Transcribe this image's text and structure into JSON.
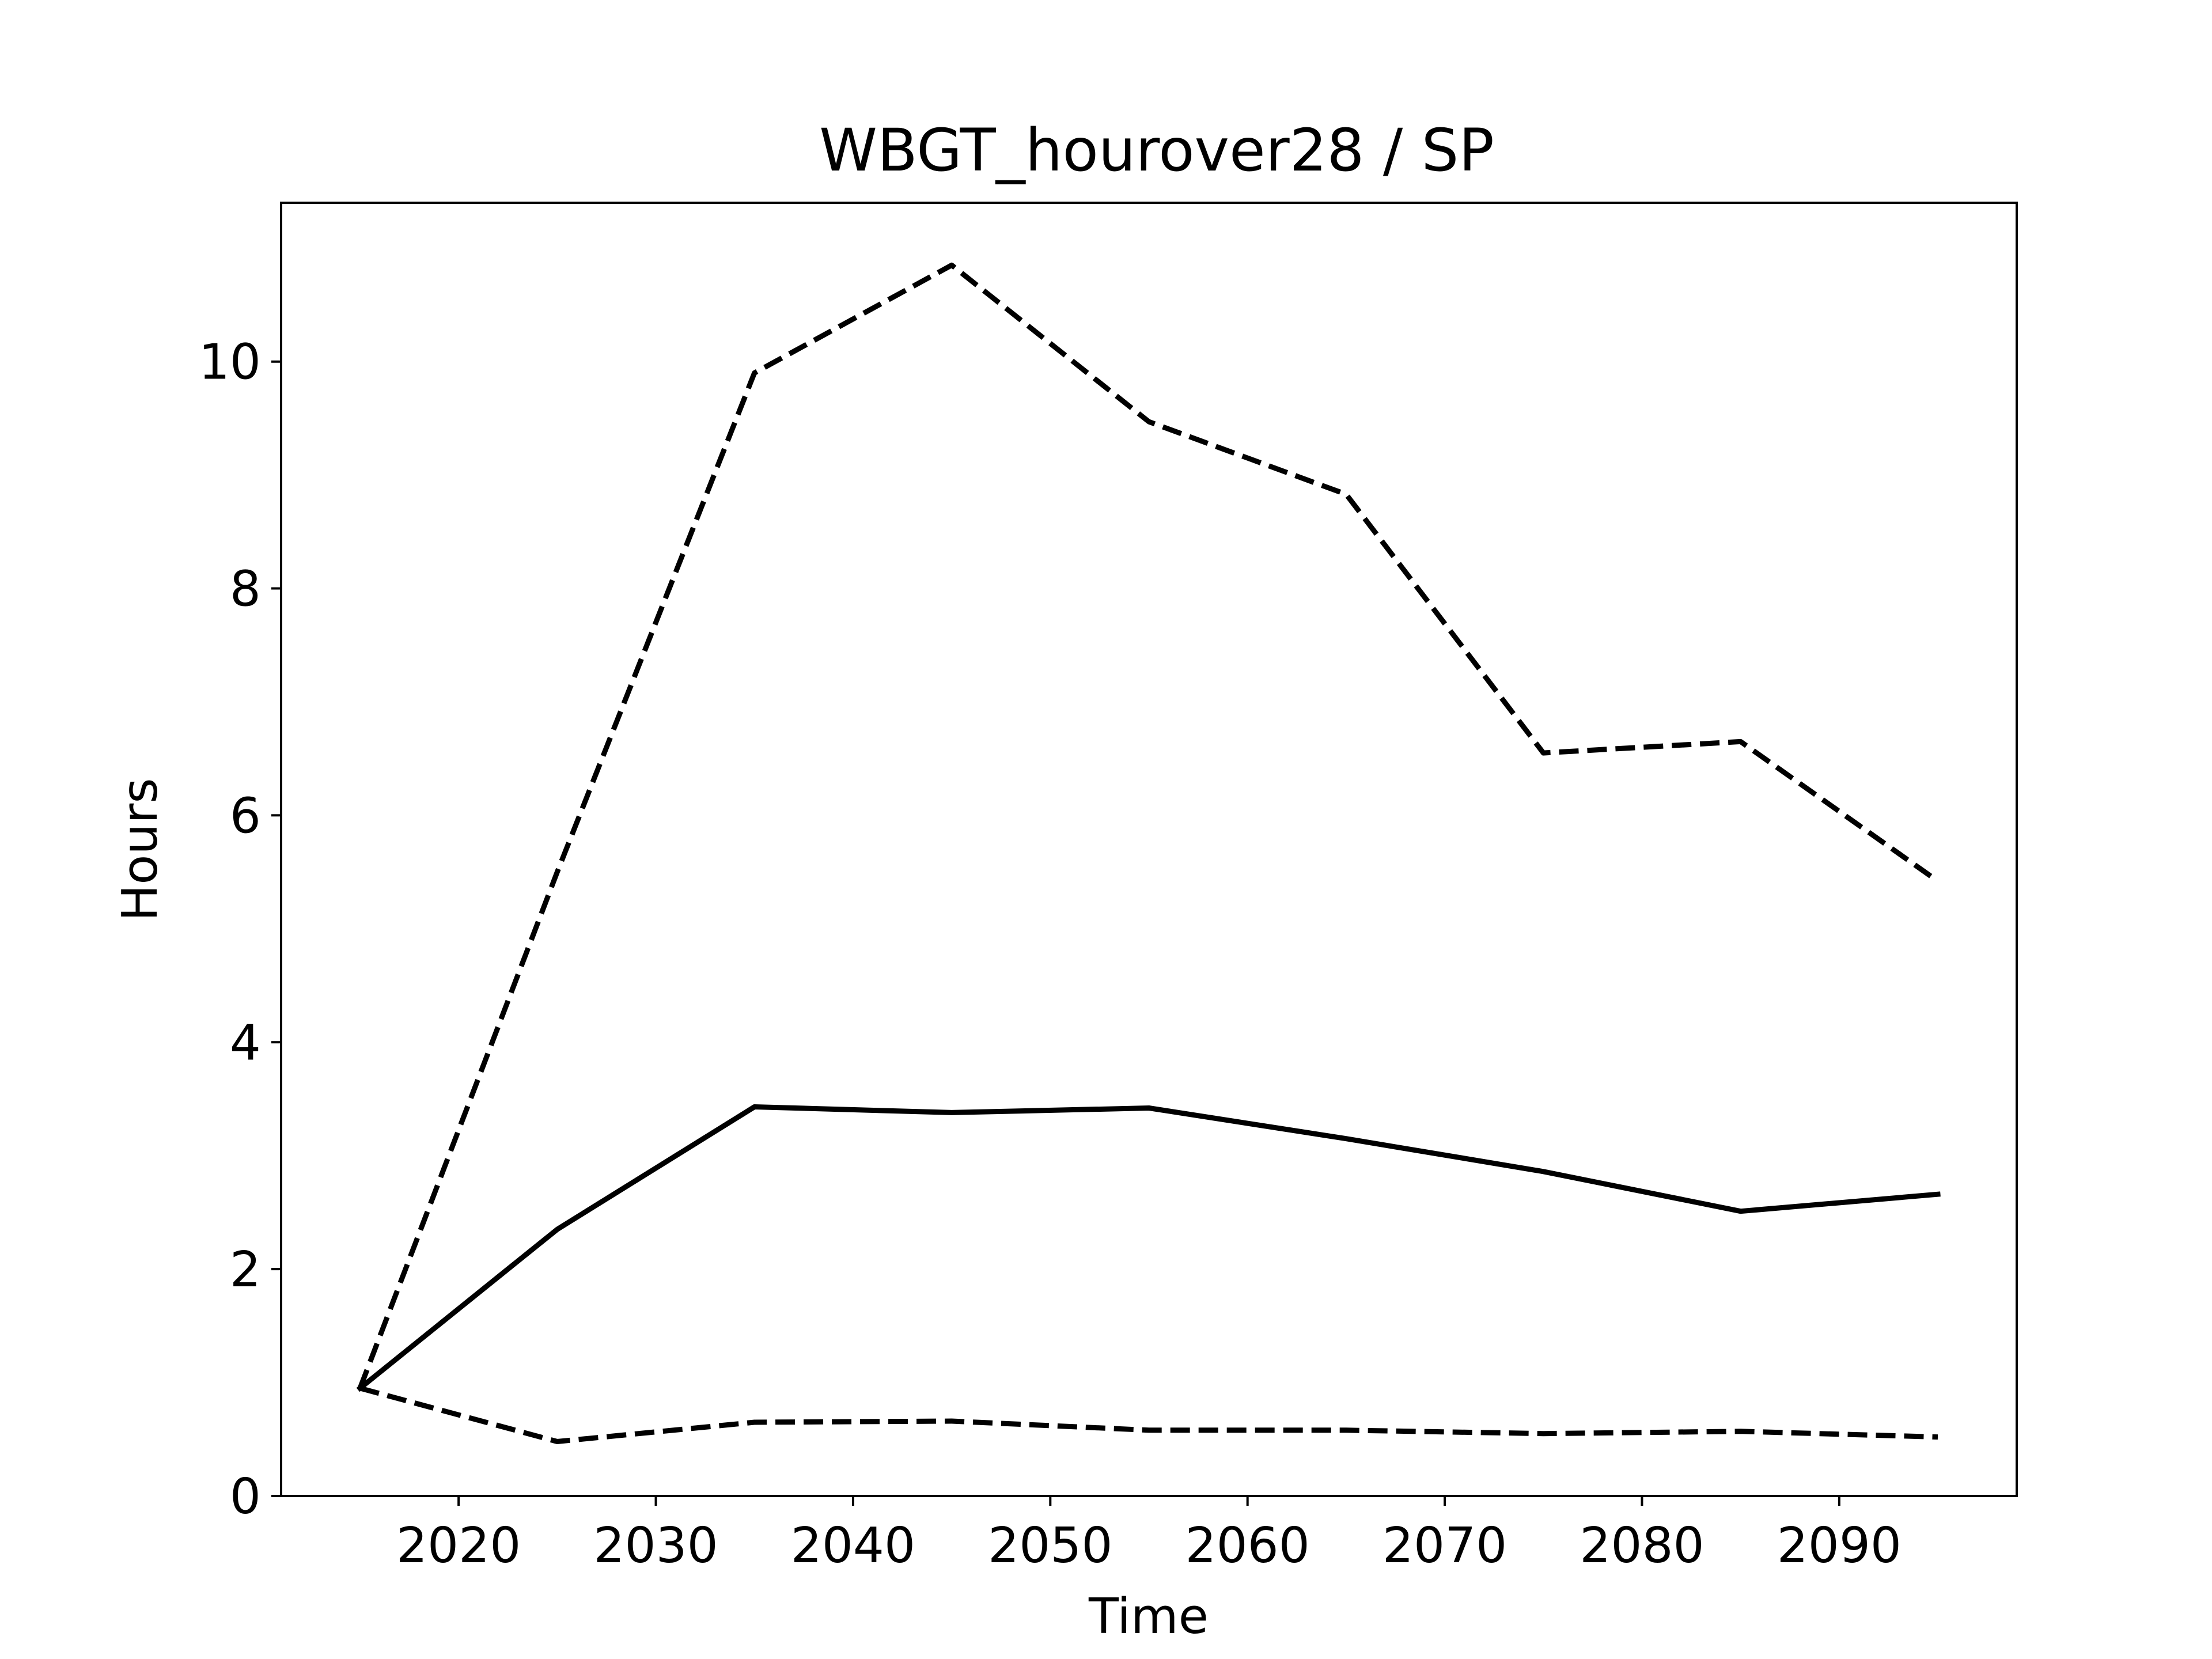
{
  "chart_data": {
    "type": "line",
    "title": "WBGT_hourover28 / SP",
    "xlabel": "Time",
    "ylabel": "Hours",
    "xlim": [
      2011,
      2099
    ],
    "ylim": [
      0,
      11.4
    ],
    "x_ticks": [
      2020,
      2030,
      2040,
      2050,
      2060,
      2070,
      2080,
      2090
    ],
    "y_ticks": [
      0,
      2,
      4,
      6,
      8,
      10
    ],
    "grid": false,
    "x": [
      2015,
      2025,
      2035,
      2045,
      2055,
      2065,
      2075,
      2085,
      2095
    ],
    "series": [
      {
        "style": "dashed",
        "color": "#000000",
        "values": [
          0.95,
          5.5,
          9.9,
          10.85,
          9.47,
          8.83,
          6.55,
          6.65,
          5.42
        ]
      },
      {
        "style": "solid",
        "color": "#000000",
        "values": [
          0.95,
          2.35,
          3.43,
          3.38,
          3.42,
          3.15,
          2.86,
          2.51,
          2.66
        ]
      },
      {
        "style": "dashed",
        "color": "#000000",
        "values": [
          0.95,
          0.48,
          0.65,
          0.66,
          0.58,
          0.58,
          0.55,
          0.57,
          0.52
        ]
      }
    ]
  }
}
